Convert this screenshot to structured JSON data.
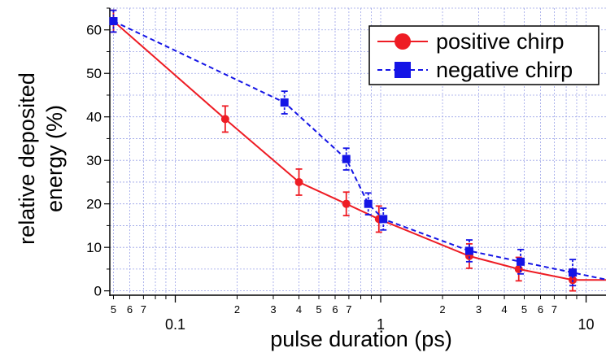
{
  "chart_data": {
    "type": "line",
    "title": "",
    "xlabel": "pulse duration (ps)",
    "ylabel_line1": "relative deposited",
    "ylabel_line2": "energy (%)",
    "xscale": "log",
    "xlim": [
      0.048,
      12.5
    ],
    "ylim": [
      -1,
      65
    ],
    "grid": true,
    "legend_position": "top-right",
    "yticks": [
      0,
      10,
      20,
      30,
      40,
      50,
      60
    ],
    "xticks_major": [
      {
        "value": 0.1,
        "label": "0.1"
      },
      {
        "value": 1,
        "label": "1"
      },
      {
        "value": 10,
        "label": "10"
      }
    ],
    "xticks_minor": [
      {
        "value": 0.05,
        "label": "5"
      },
      {
        "value": 0.06,
        "label": "6"
      },
      {
        "value": 0.07,
        "label": "7"
      },
      {
        "value": 0.2,
        "label": "2"
      },
      {
        "value": 0.3,
        "label": "3"
      },
      {
        "value": 0.4,
        "label": "4"
      },
      {
        "value": 0.5,
        "label": "5"
      },
      {
        "value": 0.6,
        "label": "6"
      },
      {
        "value": 0.7,
        "label": "7"
      },
      {
        "value": 2,
        "label": "2"
      },
      {
        "value": 3,
        "label": "3"
      },
      {
        "value": 4,
        "label": "4"
      },
      {
        "value": 5,
        "label": "5"
      },
      {
        "value": 6,
        "label": "6"
      },
      {
        "value": 7,
        "label": "7"
      }
    ],
    "series": [
      {
        "name": "positive chirp",
        "color": "#ee1c24",
        "marker": "circle",
        "linestyle": "solid",
        "points": [
          {
            "x": 0.05,
            "y": 62,
            "err": 2.5
          },
          {
            "x": 0.175,
            "y": 39.5,
            "err": 3
          },
          {
            "x": 0.4,
            "y": 25,
            "err": 3
          },
          {
            "x": 0.68,
            "y": 20,
            "err": 2.7
          },
          {
            "x": 0.98,
            "y": 16.5,
            "err": 3
          },
          {
            "x": 2.7,
            "y": 8,
            "err": 2.8
          },
          {
            "x": 4.7,
            "y": 5,
            "err": 2.7
          },
          {
            "x": 8.6,
            "y": 2.5,
            "err": 2.5
          }
        ],
        "line_end": {
          "x": 12.5,
          "y": 2.5
        }
      },
      {
        "name": "negative chirp",
        "color": "#1414e6",
        "marker": "square",
        "linestyle": "dashed",
        "points": [
          {
            "x": 0.05,
            "y": 62,
            "err": 2.5
          },
          {
            "x": 0.34,
            "y": 43.3,
            "err": 2.6
          },
          {
            "x": 0.68,
            "y": 30.3,
            "err": 2.5
          },
          {
            "x": 0.87,
            "y": 20,
            "err": 2.5
          },
          {
            "x": 1.03,
            "y": 16.5,
            "err": 2.5
          },
          {
            "x": 2.7,
            "y": 9.2,
            "err": 2.5
          },
          {
            "x": 4.8,
            "y": 6.7,
            "err": 2.8
          },
          {
            "x": 8.6,
            "y": 4.2,
            "err": 3
          }
        ],
        "line_end": {
          "x": 12.5,
          "y": 2.6
        }
      }
    ]
  }
}
